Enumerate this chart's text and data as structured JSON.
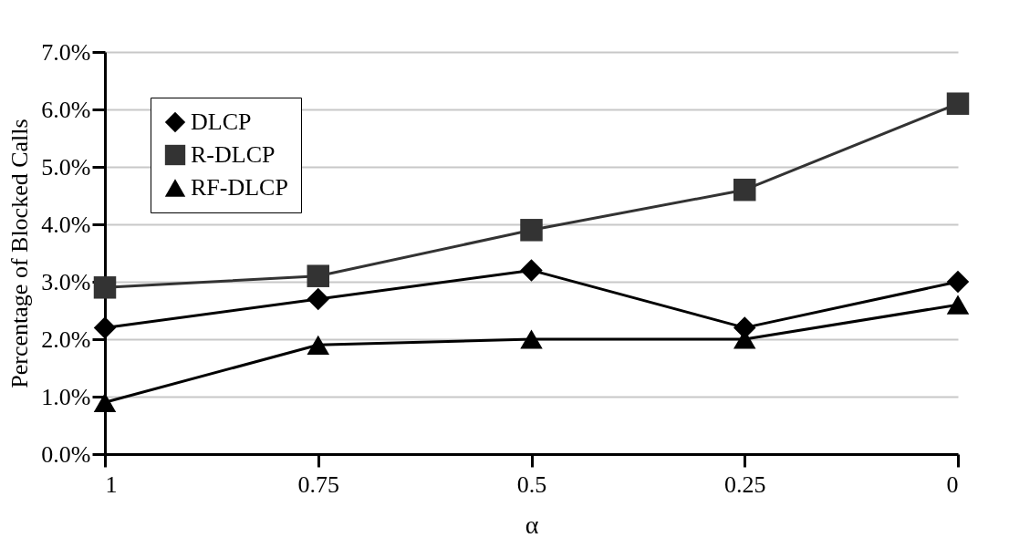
{
  "chart_data": {
    "type": "line",
    "xlabel": "α",
    "ylabel": "Percentage of Blocked Calls",
    "categories": [
      "1",
      "0.75",
      "0.5",
      "0.25",
      "0"
    ],
    "series": [
      {
        "name": "DLCP",
        "color": "#000000",
        "marker": "diamond",
        "values": [
          2.2,
          2.7,
          3.2,
          2.2,
          3.0
        ]
      },
      {
        "name": "R-DLCP",
        "color": "#333333",
        "marker": "square",
        "values": [
          2.9,
          3.1,
          3.9,
          4.6,
          6.1
        ]
      },
      {
        "name": "RF-DLCP",
        "color": "#000000",
        "marker": "triangle",
        "values": [
          0.9,
          1.9,
          2.0,
          2.0,
          2.6
        ]
      }
    ],
    "ylim": [
      0,
      7
    ],
    "yticks": [
      {
        "value": 0,
        "label": "0.0%"
      },
      {
        "value": 1,
        "label": "1.0%"
      },
      {
        "value": 2,
        "label": "2.0%"
      },
      {
        "value": 3,
        "label": "3.0%"
      },
      {
        "value": 4,
        "label": "4.0%"
      },
      {
        "value": 5,
        "label": "5.0%"
      },
      {
        "value": 6,
        "label": "6.0%"
      },
      {
        "value": 7,
        "label": "7.0%"
      }
    ],
    "grid": "y",
    "legend": "top left",
    "line_style": "solid"
  }
}
